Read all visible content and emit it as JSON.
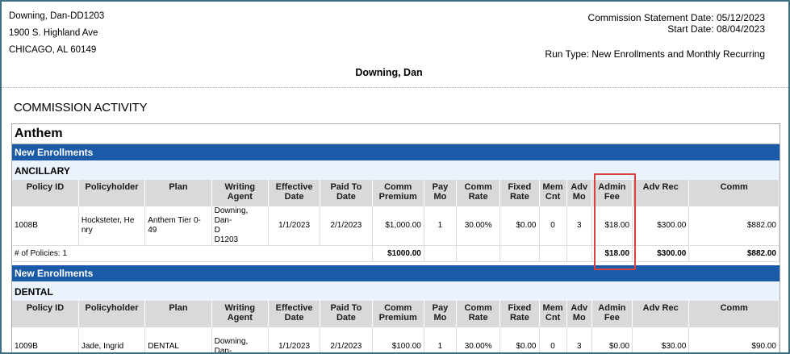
{
  "header": {
    "agent_id": "Downing, Dan-DD1203",
    "address_line1": "1900 S. Highland Ave",
    "address_line2": "CHICAGO, AL 60149",
    "statement_date": "Commission Statement Date: 05/12/2023",
    "start_date": "Start Date: 08/04/2023",
    "run_type": "Run Type: New Enrollments and Monthly Recurring",
    "agent_name": "Downing, Dan"
  },
  "section_title": "COMMISSION ACTIVITY",
  "carrier": "Anthem",
  "columns": [
    "Policy ID",
    "Policyholder",
    "Plan",
    "Writing Agent",
    "Effective Date",
    "Paid To Date",
    "Comm Premium",
    "Pay Mo",
    "Comm Rate",
    "Fixed Rate",
    "Mem Cnt",
    "Adv Mo",
    "Admin Fee",
    "Adv Rec",
    "Comm"
  ],
  "groups": [
    {
      "enrollment": "New Enrollments",
      "category": "ANCILLARY",
      "row": {
        "policy_id": "1008B",
        "policyholder": "Hocksteter, He nry",
        "plan": "Anthem Tier 0-49",
        "agent_l1": "Downing, Dan-",
        "agent_l2": "D",
        "agent_l3": "D1203",
        "effective": "1/1/2023",
        "paid_to": "2/1/2023",
        "comm_premium": "$1,000.00",
        "pay_mo": "1",
        "comm_rate": "30.00%",
        "fixed_rate": "$0.00",
        "mem_cnt": "0",
        "adv_mo": "3",
        "admin_fee": "$18.00",
        "adv_rec": "$300.00",
        "comm": "$882.00"
      },
      "total": {
        "label": "# of Policies: 1",
        "comm_premium": "$1000.00",
        "admin_fee": "$18.00",
        "adv_rec": "$300.00",
        "comm": "$882.00"
      }
    },
    {
      "enrollment": "New Enrollments",
      "category": "DENTAL",
      "row": {
        "policy_id": "1009B",
        "policyholder": "Jade, Ingrid",
        "plan": "DENTAL",
        "agent_l1": "Downing, Dan-",
        "agent_l2": "",
        "agent_l3": "",
        "effective": "1/1/2023",
        "paid_to": "2/1/2023",
        "comm_premium": "$100.00",
        "pay_mo": "1",
        "comm_rate": "30.00%",
        "fixed_rate": "$0.00",
        "mem_cnt": "0",
        "adv_mo": "3",
        "admin_fee": "$0.00",
        "adv_rec": "$30.00",
        "comm": "$90.00"
      }
    }
  ]
}
